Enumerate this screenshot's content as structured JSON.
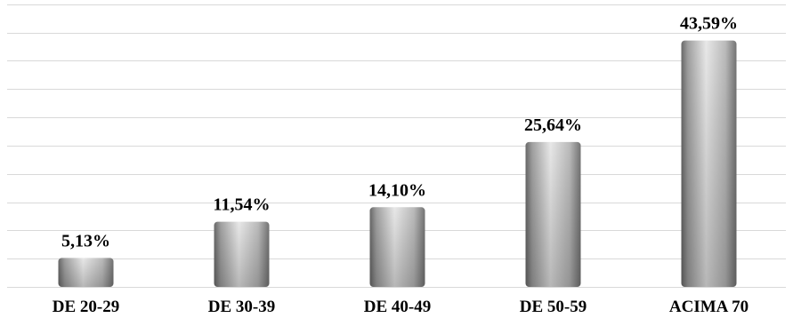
{
  "chart_data": {
    "type": "bar",
    "categories": [
      "DE 20-29",
      "DE 30-39",
      "DE 40-49",
      "DE 50-59",
      "ACIMA 70"
    ],
    "values": [
      5.13,
      11.54,
      14.1,
      25.64,
      43.59
    ],
    "data_labels": [
      "5,13%",
      "11,54%",
      "14,10%",
      "25,64%",
      "43,59%"
    ],
    "title": "",
    "xlabel": "",
    "ylabel": "",
    "ylim": [
      0,
      50
    ],
    "y_axis_visible": false,
    "grid": true,
    "grid_step": 5,
    "legend": "none",
    "colors": {
      "bar_light": "#f2f2f2",
      "bar_mid": "#bfbfbf",
      "bar_dark": "#6e6e6e",
      "grid": "#d9d9d9",
      "text": "#000000"
    }
  }
}
